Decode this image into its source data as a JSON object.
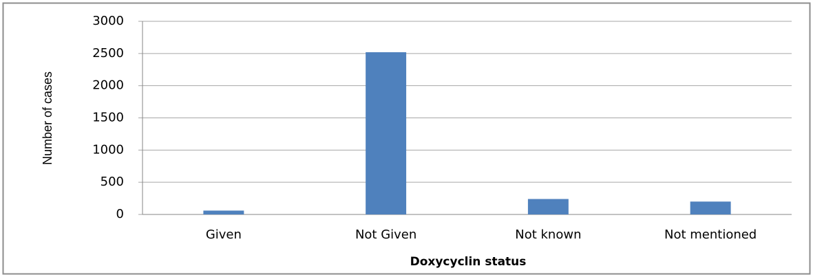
{
  "chart_data": {
    "type": "bar",
    "categories": [
      "Given",
      "Not Given",
      "Not known",
      "Not mentioned"
    ],
    "values": [
      60,
      2520,
      240,
      200
    ],
    "color": "#4f81bd",
    "ylim": [
      0,
      3000
    ],
    "yticks": [
      0,
      500,
      1000,
      1500,
      2000,
      2500,
      3000
    ],
    "grid": true,
    "xlabel": "Doxycyclin status",
    "ylabel": "Number of cases"
  }
}
